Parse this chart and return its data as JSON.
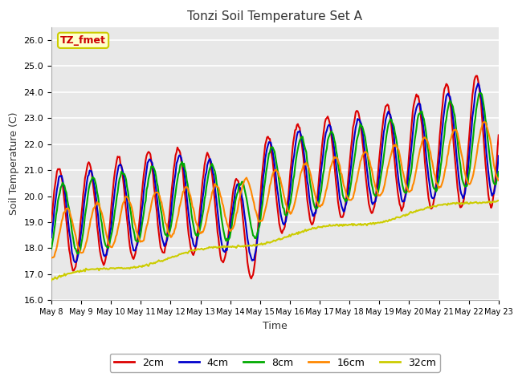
{
  "title": "Tonzi Soil Temperature Set A",
  "xlabel": "Time",
  "ylabel": "Soil Temperature (C)",
  "annotation_text": "TZ_fmet",
  "annotation_color": "#cc0000",
  "annotation_bg": "#ffffcc",
  "annotation_border": "#cccc00",
  "ylim": [
    16.0,
    26.5
  ],
  "yticks": [
    16.0,
    17.0,
    18.0,
    19.0,
    20.0,
    21.0,
    22.0,
    23.0,
    24.0,
    25.0,
    26.0
  ],
  "plot_bg_color": "#e8e8e8",
  "fig_bg_color": "#ffffff",
  "grid_color": "#ffffff",
  "colors": {
    "2cm": "#dd0000",
    "4cm": "#0000cc",
    "8cm": "#00aa00",
    "16cm": "#ff8800",
    "32cm": "#cccc00"
  },
  "line_width": 1.5,
  "n_points": 480,
  "xtick_days": [
    8,
    9,
    10,
    11,
    12,
    13,
    14,
    15,
    16,
    17,
    18,
    19,
    20,
    21,
    22,
    23
  ]
}
